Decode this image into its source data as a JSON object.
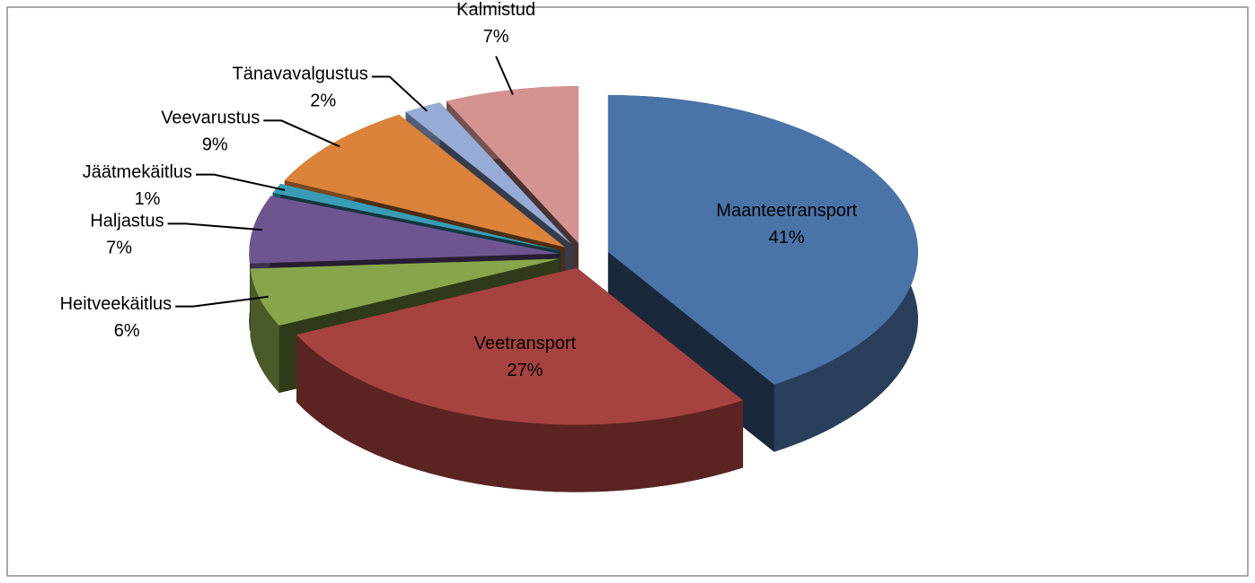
{
  "chart_data": {
    "type": "pie3d",
    "categories": [
      "Maanteetransport",
      "Veetransport",
      "Heitveekäitlus",
      "Haljastus",
      "Jäätmekäitlus",
      "Veevarustus",
      "Tänavavalgustus",
      "Kalmistud"
    ],
    "values": [
      41,
      27,
      6,
      7,
      1,
      9,
      2,
      7
    ],
    "value_labels": [
      "41%",
      "27%",
      "6%",
      "7%",
      "1%",
      "9%",
      "2%",
      "7%"
    ],
    "colors": [
      "#4a73a8",
      "#a6423f",
      "#87a64b",
      "#6f5590",
      "#3a9bb5",
      "#db823b",
      "#96abd6",
      "#d49391"
    ]
  }
}
